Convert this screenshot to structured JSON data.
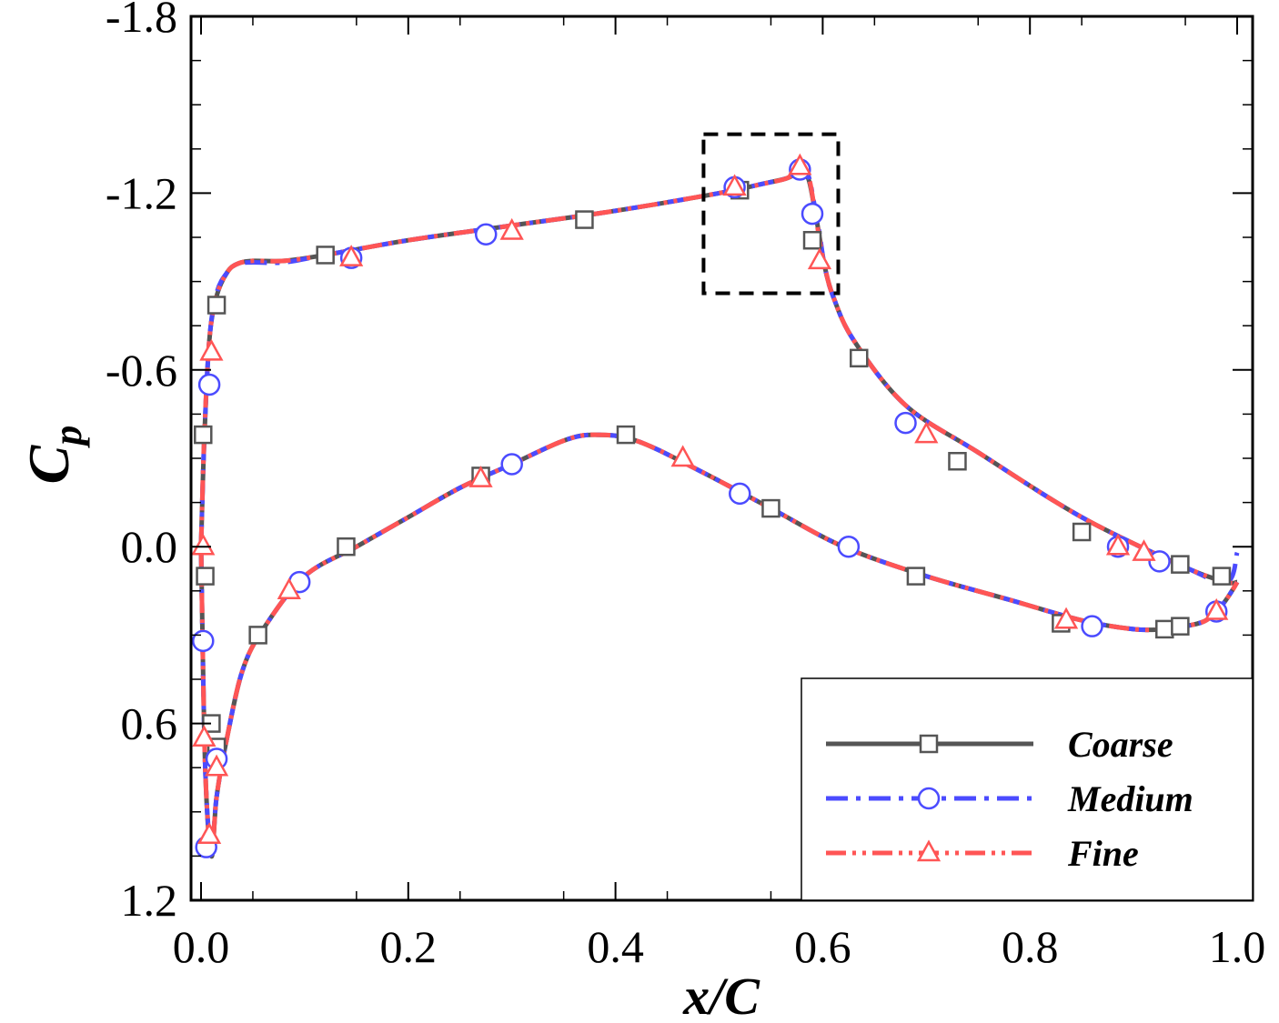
{
  "chart_data": {
    "type": "line",
    "xlabel": "x/C",
    "ylabel_main": "C",
    "ylabel_sub": "p",
    "xlim": [
      0.0,
      1.0
    ],
    "ylim": [
      1.2,
      -1.8
    ],
    "y_inverted": true,
    "xticks": [
      0.0,
      0.2,
      0.4,
      0.6,
      0.8,
      1.0
    ],
    "xtick_labels": [
      "0.0",
      "0.2",
      "0.4",
      "0.6",
      "0.8",
      "1.0"
    ],
    "yticks": [
      -1.8,
      -1.2,
      -0.6,
      0.0,
      0.6,
      1.2
    ],
    "ytick_labels": [
      "-1.8",
      "-1.2",
      "-0.6",
      "0.0",
      "0.6",
      "1.2"
    ],
    "highlight_box": {
      "x": [
        0.485,
        0.615
      ],
      "y": [
        -1.4,
        -0.86
      ]
    },
    "legend_position": "bottom-right",
    "series": [
      {
        "name": "Coarse",
        "color": "#555555",
        "dash": "solid",
        "marker": "square",
        "upper_x": [
          0.0,
          0.003,
          0.008,
          0.015,
          0.025,
          0.035,
          0.05,
          0.08,
          0.12,
          0.2,
          0.3,
          0.4,
          0.5,
          0.54,
          0.565,
          0.578,
          0.586,
          0.592,
          0.597,
          0.602,
          0.61,
          0.63,
          0.68,
          0.75,
          0.85,
          0.95,
          0.99,
          1.0
        ],
        "upper_y": [
          0.0,
          -0.35,
          -0.7,
          -0.85,
          -0.93,
          -0.96,
          -0.97,
          -0.97,
          -0.99,
          -1.04,
          -1.09,
          -1.14,
          -1.2,
          -1.23,
          -1.25,
          -1.27,
          -1.25,
          -1.15,
          -1.05,
          -0.95,
          -0.85,
          -0.7,
          -0.48,
          -0.32,
          -0.1,
          0.07,
          0.12,
          0.12
        ],
        "lower_x": [
          0.0,
          0.004,
          0.01,
          0.015,
          0.025,
          0.04,
          0.06,
          0.1,
          0.15,
          0.2,
          0.25,
          0.3,
          0.35,
          0.38,
          0.42,
          0.48,
          0.55,
          0.62,
          0.7,
          0.78,
          0.85,
          0.9,
          0.93,
          0.95,
          0.97,
          0.985,
          0.995,
          1.0
        ],
        "lower_y": [
          0.0,
          0.75,
          1.05,
          0.85,
          0.65,
          0.42,
          0.28,
          0.1,
          0.0,
          -0.1,
          -0.2,
          -0.28,
          -0.36,
          -0.38,
          -0.36,
          -0.26,
          -0.13,
          0.0,
          0.1,
          0.18,
          0.25,
          0.28,
          0.28,
          0.27,
          0.25,
          0.2,
          0.15,
          0.12
        ],
        "markers_upper_x": [
          0.015,
          0.12,
          0.37,
          0.52,
          0.59,
          0.635,
          0.73,
          0.85,
          0.945,
          0.985
        ],
        "markers_upper_y": [
          -0.82,
          -0.99,
          -1.11,
          -1.21,
          -1.04,
          -0.64,
          -0.29,
          -0.05,
          0.06,
          0.1
        ],
        "markers_lower_x": [
          0.002,
          0.004,
          0.01,
          0.015,
          0.055,
          0.14,
          0.27,
          0.41,
          0.55,
          0.69,
          0.83,
          0.93,
          0.945
        ],
        "markers_lower_y": [
          -0.38,
          0.1,
          0.6,
          0.68,
          0.3,
          0.0,
          -0.24,
          -0.38,
          -0.13,
          0.1,
          0.26,
          0.28,
          0.27
        ]
      },
      {
        "name": "Medium",
        "color": "#4b4bff",
        "dash": "dashdot",
        "marker": "circle",
        "upper_x": [
          0.0,
          0.003,
          0.008,
          0.015,
          0.025,
          0.035,
          0.05,
          0.08,
          0.12,
          0.2,
          0.3,
          0.4,
          0.5,
          0.54,
          0.565,
          0.578,
          0.586,
          0.592,
          0.597,
          0.602,
          0.61,
          0.63,
          0.68,
          0.75,
          0.85,
          0.95,
          0.99,
          1.0
        ],
        "upper_y": [
          0.0,
          -0.35,
          -0.7,
          -0.86,
          -0.93,
          -0.96,
          -0.965,
          -0.965,
          -0.99,
          -1.04,
          -1.09,
          -1.14,
          -1.2,
          -1.23,
          -1.25,
          -1.27,
          -1.26,
          -1.16,
          -1.06,
          -0.95,
          -0.85,
          -0.7,
          -0.48,
          -0.32,
          -0.1,
          0.07,
          0.12,
          0.02
        ],
        "lower_x": [
          0.0,
          0.004,
          0.01,
          0.015,
          0.025,
          0.04,
          0.06,
          0.1,
          0.15,
          0.2,
          0.25,
          0.3,
          0.35,
          0.38,
          0.42,
          0.48,
          0.55,
          0.62,
          0.7,
          0.78,
          0.85,
          0.9,
          0.93,
          0.95,
          0.97,
          0.985,
          0.995,
          1.0
        ],
        "lower_y": [
          0.0,
          0.75,
          1.03,
          0.85,
          0.65,
          0.42,
          0.28,
          0.1,
          0.0,
          -0.1,
          -0.2,
          -0.28,
          -0.36,
          -0.38,
          -0.36,
          -0.26,
          -0.13,
          0.0,
          0.1,
          0.18,
          0.25,
          0.28,
          0.28,
          0.27,
          0.25,
          0.2,
          0.15,
          0.12
        ],
        "markers_upper_x": [
          0.008,
          0.145,
          0.275,
          0.515,
          0.578,
          0.59,
          0.68,
          0.885,
          0.925
        ],
        "markers_upper_y": [
          -0.55,
          -0.98,
          -1.06,
          -1.22,
          -1.28,
          -1.13,
          -0.42,
          0.0,
          0.05
        ],
        "markers_lower_x": [
          0.002,
          0.005,
          0.015,
          0.095,
          0.3,
          0.52,
          0.625,
          0.86,
          0.98
        ],
        "markers_lower_y": [
          0.32,
          1.02,
          0.72,
          0.12,
          -0.28,
          -0.18,
          0.0,
          0.27,
          0.22
        ]
      },
      {
        "name": "Fine",
        "color": "#ff5555",
        "dash": "dashdotdot",
        "marker": "triangle",
        "upper_x": [
          0.0,
          0.003,
          0.008,
          0.015,
          0.025,
          0.035,
          0.05,
          0.08,
          0.12,
          0.2,
          0.3,
          0.4,
          0.5,
          0.54,
          0.565,
          0.578,
          0.586,
          0.592,
          0.597,
          0.602,
          0.61,
          0.63,
          0.68,
          0.75,
          0.85,
          0.95,
          0.99,
          1.0
        ],
        "upper_y": [
          0.0,
          -0.36,
          -0.7,
          -0.85,
          -0.93,
          -0.96,
          -0.97,
          -0.97,
          -0.99,
          -1.04,
          -1.09,
          -1.14,
          -1.2,
          -1.23,
          -1.25,
          -1.28,
          -1.26,
          -1.15,
          -1.04,
          -0.95,
          -0.85,
          -0.7,
          -0.48,
          -0.32,
          -0.1,
          0.07,
          0.12,
          0.12
        ],
        "lower_x": [
          0.0,
          0.004,
          0.01,
          0.015,
          0.025,
          0.04,
          0.06,
          0.1,
          0.15,
          0.2,
          0.25,
          0.3,
          0.35,
          0.38,
          0.42,
          0.48,
          0.55,
          0.62,
          0.7,
          0.78,
          0.85,
          0.9,
          0.93,
          0.95,
          0.97,
          0.985,
          0.995,
          1.0
        ],
        "lower_y": [
          0.0,
          0.75,
          1.04,
          0.85,
          0.65,
          0.42,
          0.28,
          0.1,
          0.0,
          -0.1,
          -0.2,
          -0.28,
          -0.36,
          -0.38,
          -0.36,
          -0.26,
          -0.13,
          0.0,
          0.1,
          0.18,
          0.25,
          0.28,
          0.28,
          0.27,
          0.25,
          0.2,
          0.15,
          0.12
        ],
        "markers_upper_x": [
          0.01,
          0.145,
          0.3,
          0.515,
          0.578,
          0.597,
          0.7,
          0.885,
          0.91
        ],
        "markers_upper_y": [
          -0.66,
          -0.98,
          -1.07,
          -1.22,
          -1.29,
          -0.97,
          -0.38,
          0.0,
          0.02
        ],
        "markers_lower_x": [
          0.002,
          0.003,
          0.008,
          0.015,
          0.085,
          0.27,
          0.465,
          0.835,
          0.98
        ],
        "markers_lower_y": [
          0.0,
          0.65,
          0.98,
          0.75,
          0.15,
          -0.23,
          -0.3,
          0.25,
          0.22
        ]
      }
    ]
  }
}
